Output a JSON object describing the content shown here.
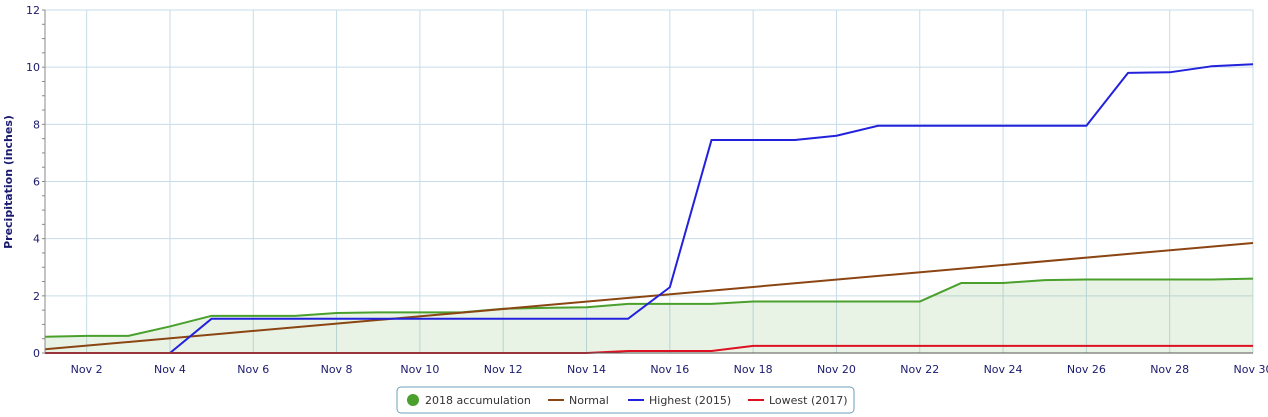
{
  "chart_data": {
    "type": "line",
    "title": "",
    "xlabel": "",
    "ylabel": "Precipitation (inches)",
    "ylim": [
      0,
      12
    ],
    "y_ticks": [
      0,
      2,
      4,
      6,
      8,
      10,
      12
    ],
    "x_tick_labels": [
      "Nov 2",
      "Nov 4",
      "Nov 6",
      "Nov 8",
      "Nov 10",
      "Nov 12",
      "Nov 14",
      "Nov 16",
      "Nov 18",
      "Nov 20",
      "Nov 22",
      "Nov 24",
      "Nov 26",
      "Nov 28",
      "Nov 30"
    ],
    "x_tick_days": [
      2,
      4,
      6,
      8,
      10,
      12,
      14,
      16,
      18,
      20,
      22,
      24,
      26,
      28,
      30
    ],
    "xlim_days": [
      1,
      30
    ],
    "grid": true,
    "legend_position": "bottom-center",
    "series": [
      {
        "name": "2018 accumulation",
        "color": "#4aa02c",
        "fill": true,
        "legend_symbol": "circle",
        "x": [
          1,
          2,
          3,
          4,
          5,
          6,
          7,
          8,
          9,
          10,
          11,
          12,
          13,
          14,
          15,
          16,
          17,
          18,
          19,
          20,
          21,
          22,
          23,
          24,
          25,
          26,
          27,
          28,
          29,
          30
        ],
        "y": [
          0.57,
          0.6,
          0.6,
          0.93,
          1.3,
          1.3,
          1.3,
          1.4,
          1.42,
          1.42,
          1.42,
          1.55,
          1.58,
          1.6,
          1.72,
          1.72,
          1.72,
          1.8,
          1.8,
          1.8,
          1.8,
          1.8,
          2.45,
          2.45,
          2.55,
          2.57,
          2.57,
          2.57,
          2.57,
          2.6
        ]
      },
      {
        "name": "Normal",
        "color": "#8b4513",
        "fill": false,
        "legend_symbol": "line",
        "x": [
          1,
          30
        ],
        "y": [
          0.13,
          3.85
        ]
      },
      {
        "name": "Highest (2015)",
        "color": "#2222dd",
        "fill": false,
        "legend_symbol": "line",
        "x": [
          1,
          2,
          3,
          4,
          5,
          6,
          7,
          8,
          9,
          10,
          11,
          12,
          13,
          14,
          15,
          16,
          17,
          18,
          19,
          20,
          21,
          22,
          23,
          24,
          25,
          26,
          27,
          28,
          29,
          30
        ],
        "y": [
          0,
          0,
          0,
          0,
          1.2,
          1.2,
          1.2,
          1.2,
          1.2,
          1.2,
          1.2,
          1.2,
          1.2,
          1.2,
          1.2,
          2.3,
          7.45,
          7.45,
          7.45,
          7.6,
          7.95,
          7.95,
          7.95,
          7.95,
          7.95,
          7.95,
          9.8,
          9.82,
          10.03,
          10.1
        ]
      },
      {
        "name": "Lowest (2017)",
        "color": "#dd1122",
        "fill": false,
        "legend_symbol": "line",
        "x": [
          1,
          2,
          3,
          4,
          5,
          6,
          7,
          8,
          9,
          10,
          11,
          12,
          13,
          14,
          15,
          16,
          17,
          18,
          19,
          20,
          21,
          22,
          23,
          24,
          25,
          26,
          27,
          28,
          29,
          30
        ],
        "y": [
          0,
          0,
          0,
          0,
          0,
          0,
          0,
          0,
          0,
          0,
          0,
          0,
          0,
          0,
          0.07,
          0.07,
          0.07,
          0.25,
          0.25,
          0.25,
          0.25,
          0.25,
          0.25,
          0.25,
          0.25,
          0.25,
          0.25,
          0.25,
          0.25,
          0.25
        ]
      }
    ]
  }
}
